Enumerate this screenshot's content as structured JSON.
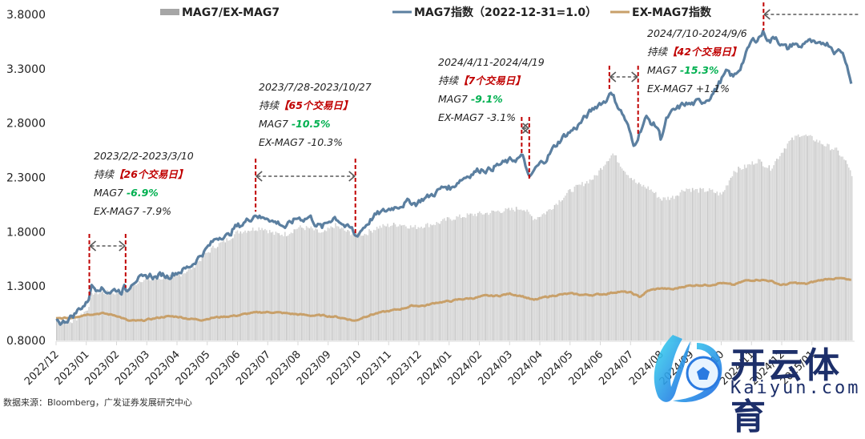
{
  "chart_data": {
    "type": "line",
    "title": "",
    "xlabel": "",
    "ylabel": "",
    "ylim": [
      0.8,
      3.8
    ],
    "yticks": [
      "0.8000",
      "1.3000",
      "1.8000",
      "2.3000",
      "2.8000",
      "3.3000",
      "3.8000"
    ],
    "xticks": [
      "2022/12",
      "2023/01",
      "2023/02",
      "2023/03",
      "2023/04",
      "2023/05",
      "2023/06",
      "2023/07",
      "2023/08",
      "2023/09",
      "2023/10",
      "2023/11",
      "2023/12",
      "2024/01",
      "2024/02",
      "2024/03",
      "2024/04",
      "2024/05",
      "2024/06",
      "2024/07",
      "2024/08",
      "2024/09",
      "2024/10",
      "2024/11",
      "2024/12",
      "2025/01"
    ],
    "grid": false,
    "legend_position": "top",
    "legend": [
      {
        "name": "MAG7/EX-MAG7",
        "type": "bar",
        "color": "#a6a6a6"
      },
      {
        "name": "MAG7指数（2022-12-31=1.0）",
        "type": "line",
        "color": "#5b7fa0"
      },
      {
        "name": "EX-MAG7指数",
        "type": "line",
        "color": "#c8a06a"
      }
    ],
    "x_unit": "months since 2022-12-31",
    "series": [
      {
        "name": "MAG7指数（2022-12-31=1.0）",
        "type": "line",
        "color": "#5b7fa0",
        "points": [
          [
            0.0,
            1.0
          ],
          [
            0.2,
            0.96
          ],
          [
            0.4,
            1.0
          ],
          [
            0.6,
            1.04
          ],
          [
            0.8,
            1.1
          ],
          [
            1.0,
            1.14
          ],
          [
            1.1,
            1.2
          ],
          [
            1.15,
            1.31
          ],
          [
            1.3,
            1.28
          ],
          [
            1.45,
            1.3
          ],
          [
            1.6,
            1.26
          ],
          [
            1.8,
            1.25
          ],
          [
            2.0,
            1.27
          ],
          [
            2.15,
            1.25
          ],
          [
            2.25,
            1.29
          ],
          [
            2.35,
            1.25
          ],
          [
            2.5,
            1.34
          ],
          [
            2.7,
            1.38
          ],
          [
            2.9,
            1.36
          ],
          [
            3.1,
            1.4
          ],
          [
            3.3,
            1.38
          ],
          [
            3.5,
            1.41
          ],
          [
            3.7,
            1.39
          ],
          [
            3.9,
            1.42
          ],
          [
            4.1,
            1.44
          ],
          [
            4.3,
            1.46
          ],
          [
            4.5,
            1.5
          ],
          [
            4.7,
            1.56
          ],
          [
            4.9,
            1.62
          ],
          [
            5.1,
            1.68
          ],
          [
            5.3,
            1.74
          ],
          [
            5.5,
            1.77
          ],
          [
            5.7,
            1.76
          ],
          [
            5.9,
            1.84
          ],
          [
            6.1,
            1.86
          ],
          [
            6.3,
            1.9
          ],
          [
            6.5,
            1.94
          ],
          [
            6.6,
            1.97
          ],
          [
            6.8,
            1.92
          ],
          [
            7.0,
            1.94
          ],
          [
            7.2,
            1.89
          ],
          [
            7.4,
            1.88
          ],
          [
            7.6,
            1.84
          ],
          [
            7.8,
            1.89
          ],
          [
            8.0,
            1.93
          ],
          [
            8.2,
            1.92
          ],
          [
            8.4,
            1.94
          ],
          [
            8.6,
            1.87
          ],
          [
            8.8,
            1.84
          ],
          [
            9.0,
            1.89
          ],
          [
            9.2,
            1.94
          ],
          [
            9.4,
            1.9
          ],
          [
            9.6,
            1.84
          ],
          [
            9.8,
            1.82
          ],
          [
            9.9,
            1.75
          ],
          [
            10.1,
            1.82
          ],
          [
            10.3,
            1.88
          ],
          [
            10.5,
            1.94
          ],
          [
            10.7,
            1.97
          ],
          [
            10.9,
            1.99
          ],
          [
            11.1,
            2.02
          ],
          [
            11.3,
            2.04
          ],
          [
            11.5,
            2.06
          ],
          [
            11.7,
            2.08
          ],
          [
            11.9,
            2.06
          ],
          [
            12.1,
            2.1
          ],
          [
            12.3,
            2.12
          ],
          [
            12.5,
            2.15
          ],
          [
            12.7,
            2.19
          ],
          [
            12.9,
            2.22
          ],
          [
            13.1,
            2.2
          ],
          [
            13.3,
            2.27
          ],
          [
            13.5,
            2.3
          ],
          [
            13.7,
            2.33
          ],
          [
            13.9,
            2.36
          ],
          [
            14.1,
            2.38
          ],
          [
            14.3,
            2.37
          ],
          [
            14.5,
            2.4
          ],
          [
            14.7,
            2.42
          ],
          [
            14.9,
            2.44
          ],
          [
            15.1,
            2.46
          ],
          [
            15.3,
            2.48
          ],
          [
            15.4,
            2.49
          ],
          [
            15.5,
            2.45
          ],
          [
            15.65,
            2.27
          ],
          [
            15.8,
            2.36
          ],
          [
            16.0,
            2.42
          ],
          [
            16.2,
            2.47
          ],
          [
            16.4,
            2.55
          ],
          [
            16.6,
            2.62
          ],
          [
            16.8,
            2.68
          ],
          [
            17.0,
            2.72
          ],
          [
            17.2,
            2.76
          ],
          [
            17.4,
            2.82
          ],
          [
            17.6,
            2.88
          ],
          [
            17.8,
            2.94
          ],
          [
            18.0,
            2.99
          ],
          [
            18.2,
            3.0
          ],
          [
            18.3,
            3.1
          ],
          [
            18.45,
            3.03
          ],
          [
            18.6,
            2.95
          ],
          [
            18.8,
            2.85
          ],
          [
            18.95,
            2.74
          ],
          [
            19.1,
            2.58
          ],
          [
            19.3,
            2.72
          ],
          [
            19.5,
            2.85
          ],
          [
            19.7,
            2.8
          ],
          [
            19.9,
            2.76
          ],
          [
            20.0,
            2.66
          ],
          [
            20.2,
            2.84
          ],
          [
            20.4,
            2.9
          ],
          [
            20.6,
            2.94
          ],
          [
            20.8,
            2.98
          ],
          [
            21.0,
            2.97
          ],
          [
            21.2,
            2.99
          ],
          [
            21.4,
            3.0
          ],
          [
            21.6,
            3.04
          ],
          [
            21.8,
            3.1
          ],
          [
            22.0,
            3.2
          ],
          [
            22.2,
            3.27
          ],
          [
            22.4,
            3.22
          ],
          [
            22.6,
            3.3
          ],
          [
            22.8,
            3.42
          ],
          [
            23.0,
            3.55
          ],
          [
            23.2,
            3.58
          ],
          [
            23.4,
            3.64
          ],
          [
            23.6,
            3.55
          ],
          [
            23.8,
            3.6
          ],
          [
            24.0,
            3.52
          ],
          [
            24.2,
            3.48
          ],
          [
            24.4,
            3.54
          ],
          [
            24.6,
            3.49
          ],
          [
            24.8,
            3.56
          ],
          [
            25.0,
            3.54
          ],
          [
            25.2,
            3.5
          ],
          [
            25.4,
            3.55
          ],
          [
            25.6,
            3.52
          ],
          [
            25.8,
            3.45
          ],
          [
            25.95,
            3.48
          ],
          [
            26.1,
            3.4
          ],
          [
            26.2,
            3.3
          ],
          [
            26.3,
            3.16
          ]
        ]
      },
      {
        "name": "EX-MAG7指数",
        "type": "line",
        "color": "#c8a06a",
        "points": [
          [
            0.0,
            1.0
          ],
          [
            0.5,
            1.01
          ],
          [
            1.0,
            1.04
          ],
          [
            1.5,
            1.05
          ],
          [
            2.0,
            1.03
          ],
          [
            2.4,
            0.98
          ],
          [
            2.8,
            0.98
          ],
          [
            3.2,
            1.0
          ],
          [
            3.6,
            1.02
          ],
          [
            4.0,
            1.02
          ],
          [
            4.4,
            1.0
          ],
          [
            4.8,
            0.99
          ],
          [
            5.2,
            1.01
          ],
          [
            5.6,
            1.02
          ],
          [
            6.0,
            1.03
          ],
          [
            6.4,
            1.05
          ],
          [
            6.8,
            1.06
          ],
          [
            7.2,
            1.06
          ],
          [
            7.6,
            1.05
          ],
          [
            8.0,
            1.04
          ],
          [
            8.4,
            1.03
          ],
          [
            8.8,
            1.03
          ],
          [
            9.2,
            1.02
          ],
          [
            9.6,
            1.0
          ],
          [
            9.9,
            0.98
          ],
          [
            10.2,
            1.02
          ],
          [
            10.6,
            1.05
          ],
          [
            11.0,
            1.07
          ],
          [
            11.4,
            1.09
          ],
          [
            11.8,
            1.12
          ],
          [
            12.2,
            1.12
          ],
          [
            12.6,
            1.15
          ],
          [
            13.0,
            1.16
          ],
          [
            13.4,
            1.18
          ],
          [
            13.8,
            1.19
          ],
          [
            14.2,
            1.21
          ],
          [
            14.6,
            1.21
          ],
          [
            15.0,
            1.23
          ],
          [
            15.4,
            1.21
          ],
          [
            15.8,
            1.17
          ],
          [
            16.2,
            1.2
          ],
          [
            16.6,
            1.22
          ],
          [
            17.0,
            1.23
          ],
          [
            17.4,
            1.22
          ],
          [
            17.8,
            1.22
          ],
          [
            18.2,
            1.23
          ],
          [
            18.6,
            1.25
          ],
          [
            19.0,
            1.24
          ],
          [
            19.3,
            1.2
          ],
          [
            19.6,
            1.26
          ],
          [
            20.0,
            1.28
          ],
          [
            20.4,
            1.27
          ],
          [
            20.8,
            1.3
          ],
          [
            21.2,
            1.31
          ],
          [
            21.6,
            1.31
          ],
          [
            22.0,
            1.33
          ],
          [
            22.4,
            1.31
          ],
          [
            22.8,
            1.35
          ],
          [
            23.2,
            1.36
          ],
          [
            23.6,
            1.35
          ],
          [
            24.0,
            1.31
          ],
          [
            24.4,
            1.33
          ],
          [
            24.8,
            1.32
          ],
          [
            25.2,
            1.35
          ],
          [
            25.6,
            1.37
          ],
          [
            26.0,
            1.37
          ],
          [
            26.3,
            1.35
          ]
        ]
      },
      {
        "name": "MAG7/EX-MAG7",
        "type": "bar",
        "color": "#d0d0d0",
        "points": [
          [
            0.0,
            1.0
          ],
          [
            0.5,
            0.97
          ],
          [
            1.0,
            1.08
          ],
          [
            1.2,
            1.24
          ],
          [
            1.5,
            1.24
          ],
          [
            2.0,
            1.24
          ],
          [
            2.4,
            1.28
          ],
          [
            2.8,
            1.36
          ],
          [
            3.2,
            1.36
          ],
          [
            3.6,
            1.38
          ],
          [
            4.0,
            1.4
          ],
          [
            4.4,
            1.45
          ],
          [
            4.8,
            1.56
          ],
          [
            5.2,
            1.66
          ],
          [
            5.6,
            1.72
          ],
          [
            6.0,
            1.8
          ],
          [
            6.4,
            1.82
          ],
          [
            6.8,
            1.84
          ],
          [
            7.2,
            1.78
          ],
          [
            7.6,
            1.78
          ],
          [
            8.0,
            1.84
          ],
          [
            8.4,
            1.83
          ],
          [
            8.8,
            1.78
          ],
          [
            9.2,
            1.86
          ],
          [
            9.6,
            1.8
          ],
          [
            9.9,
            1.78
          ],
          [
            10.2,
            1.78
          ],
          [
            10.6,
            1.84
          ],
          [
            11.0,
            1.86
          ],
          [
            11.4,
            1.87
          ],
          [
            11.8,
            1.84
          ],
          [
            12.2,
            1.86
          ],
          [
            12.6,
            1.88
          ],
          [
            13.0,
            1.92
          ],
          [
            13.4,
            1.94
          ],
          [
            13.8,
            1.96
          ],
          [
            14.2,
            1.97
          ],
          [
            14.6,
            1.99
          ],
          [
            15.0,
            2.0
          ],
          [
            15.4,
            2.02
          ],
          [
            15.8,
            1.92
          ],
          [
            16.2,
            1.98
          ],
          [
            16.6,
            2.08
          ],
          [
            17.0,
            2.18
          ],
          [
            17.4,
            2.24
          ],
          [
            17.8,
            2.3
          ],
          [
            18.2,
            2.46
          ],
          [
            18.4,
            2.52
          ],
          [
            18.8,
            2.36
          ],
          [
            19.2,
            2.24
          ],
          [
            19.6,
            2.2
          ],
          [
            20.0,
            2.1
          ],
          [
            20.4,
            2.12
          ],
          [
            20.8,
            2.2
          ],
          [
            21.2,
            2.18
          ],
          [
            21.6,
            2.18
          ],
          [
            22.0,
            2.14
          ],
          [
            22.4,
            2.36
          ],
          [
            22.8,
            2.4
          ],
          [
            23.2,
            2.46
          ],
          [
            23.6,
            2.38
          ],
          [
            23.8,
            2.46
          ],
          [
            24.2,
            2.62
          ],
          [
            24.6,
            2.7
          ],
          [
            25.0,
            2.66
          ],
          [
            25.4,
            2.6
          ],
          [
            25.8,
            2.55
          ],
          [
            26.0,
            2.48
          ],
          [
            26.2,
            2.4
          ],
          [
            26.3,
            2.3
          ]
        ]
      }
    ],
    "annotations": [
      {
        "range_label": "2023/2/2-2023/3/10",
        "duration_prefix": "持续",
        "duration": "【26个交易日】",
        "mag7_label": "MAG7",
        "mag7_change": "-6.9%",
        "ex_label": "EX-MAG7",
        "ex_change": "-7.9%",
        "start": 1.1,
        "end": 2.3
      },
      {
        "range_label": "2023/7/28-2023/10/27",
        "duration_prefix": "持续",
        "duration": "【65个交易日】",
        "mag7_label": "MAG7",
        "mag7_change": "-10.5%",
        "ex_label": "EX-MAG7",
        "ex_change": "-10.3%",
        "start": 6.6,
        "end": 9.9
      },
      {
        "range_label": "2024/4/11-2024/4/19",
        "duration_prefix": "持续",
        "duration": "【7个交易日】",
        "mag7_label": "MAG7",
        "mag7_change": "-9.1%",
        "ex_label": "EX-MAG7",
        "ex_change": "-3.1%",
        "start": 15.4,
        "end": 15.65
      },
      {
        "range_label": "2024/7/10-2024/9/6",
        "duration_prefix": "持续",
        "duration": "【42个交易日】",
        "mag7_label": "MAG7",
        "mag7_change": "-15.3%",
        "ex_label": "EX-MAG7",
        "ex_change": "+1.1%",
        "start": 18.3,
        "end": 19.25
      },
      {
        "range_label": "",
        "start": 23.4,
        "end": null,
        "open_ended": true
      }
    ]
  },
  "source": "数据来源：Bloomberg，广发证券发展研究中心",
  "watermark": {
    "cn": "开云体育",
    "en": "Kaiyun.com"
  }
}
